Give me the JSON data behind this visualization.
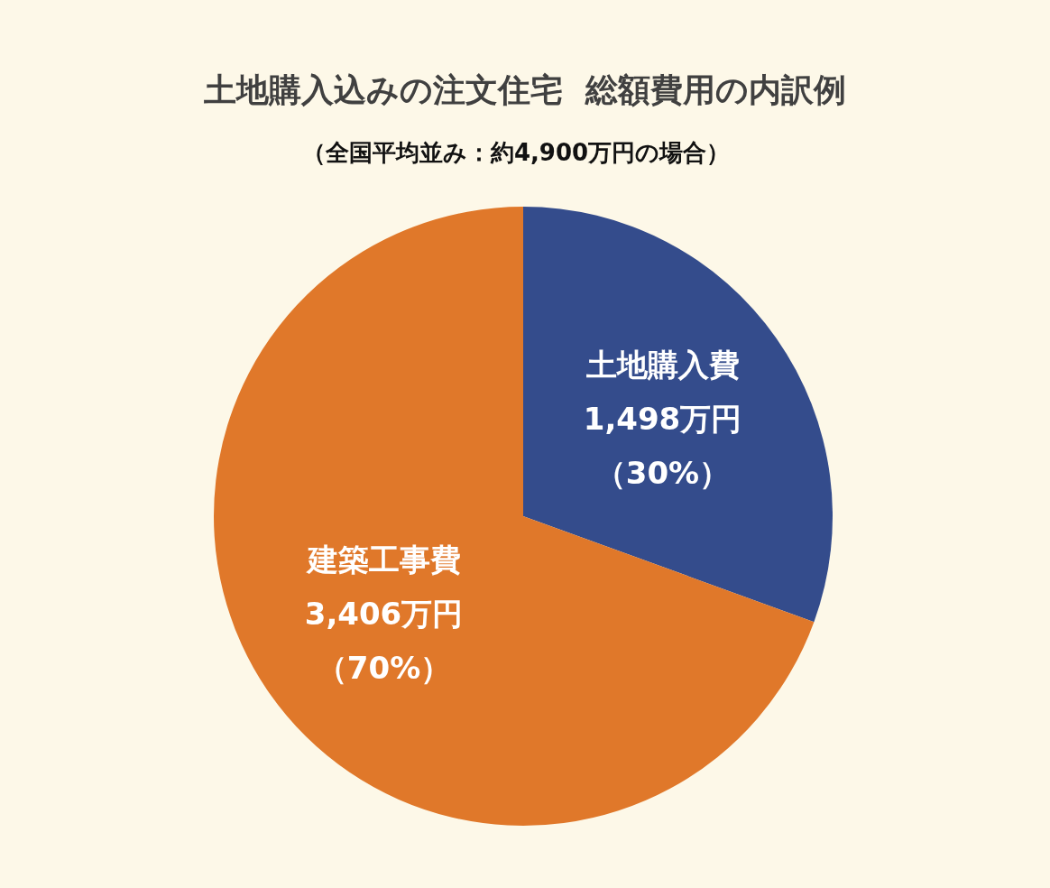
{
  "chart_data": {
    "type": "pie",
    "title": "土地購入込みの注文住宅  総額費用の内訳例",
    "subtitle": "（全国平均並み：約4,900万円の場合）",
    "categories": [
      "土地購入費",
      "建築工事費"
    ],
    "values": [
      1498,
      3406
    ],
    "colors": [
      "#344c8c",
      "#e0782a"
    ],
    "value_labels": [
      "1,498万円（30%）",
      "3,406万円（70%）"
    ],
    "legend": false
  }
}
